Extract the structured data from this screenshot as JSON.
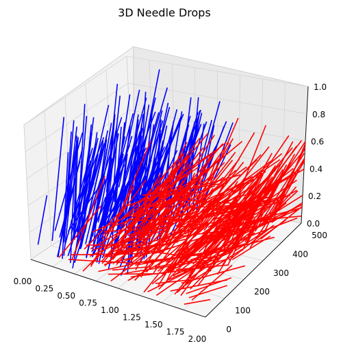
{
  "chart_data": {
    "type": "3d-line-segments",
    "title": "3D Needle Drops",
    "xlabel": "",
    "ylabel": "",
    "zlabel": "",
    "x_ticks": [
      "0.00",
      "0.25",
      "0.50",
      "0.75",
      "1.00",
      "1.25",
      "1.50",
      "1.75",
      "2.00"
    ],
    "y_ticks": [
      "0",
      "100",
      "200",
      "300",
      "400",
      "500"
    ],
    "z_ticks": [
      "0.0",
      "0.2",
      "0.4",
      "0.6",
      "0.8",
      "1.0"
    ],
    "xlim": [
      0,
      2
    ],
    "ylim": [
      0,
      500
    ],
    "zlim": [
      0,
      1
    ],
    "grid": true,
    "series": [
      {
        "color": "#0000ff",
        "approx_count": 200
      },
      {
        "color": "#ff0000",
        "approx_count": 300
      }
    ]
  }
}
